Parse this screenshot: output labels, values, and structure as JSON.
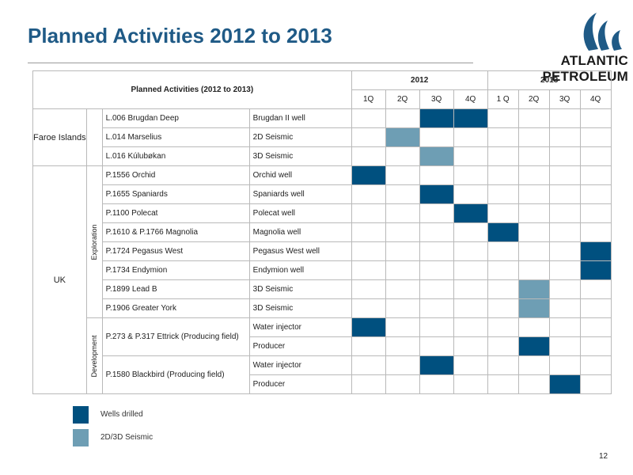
{
  "title": "Planned Activities 2012 to 2013",
  "logo": {
    "text": "ATLANTIC PETROLEUM",
    "icon": "wave-swirl-icon"
  },
  "table": {
    "header": "Planned Activities (2012 to 2013)",
    "years": [
      "2012",
      "2013"
    ],
    "quarters": [
      "1Q",
      "2Q",
      "3Q",
      "4Q",
      "1 Q",
      "2Q",
      "3Q",
      "4Q"
    ],
    "regions": [
      {
        "name": "Faroe Islands",
        "groups": [
          {
            "label": "",
            "rows": [
              {
                "license": "L.006 Brugdan Deep",
                "activity": "Brugdan II well",
                "cells": [
                  "",
                  "",
                  "W",
                  "W",
                  "",
                  "",
                  "",
                  ""
                ]
              },
              {
                "license": "L.014 Marselius",
                "activity": "2D Seismic",
                "cells": [
                  "",
                  "S",
                  "",
                  "",
                  "",
                  "",
                  "",
                  ""
                ]
              },
              {
                "license": "L.016 Kúlubøkan",
                "activity": "3D Seismic",
                "cells": [
                  "",
                  "",
                  "S",
                  "",
                  "",
                  "",
                  "",
                  ""
                ]
              }
            ]
          }
        ]
      },
      {
        "name": "UK",
        "groups": [
          {
            "label": "Exploration",
            "rows": [
              {
                "license": "P.1556 Orchid",
                "activity": "Orchid well",
                "cells": [
                  "W",
                  "",
                  "",
                  "",
                  "",
                  "",
                  "",
                  ""
                ]
              },
              {
                "license": "P.1655 Spaniards",
                "activity": "Spaniards well",
                "cells": [
                  "",
                  "",
                  "W",
                  "",
                  "",
                  "",
                  "",
                  ""
                ]
              },
              {
                "license": "P.1100 Polecat",
                "activity": "Polecat well",
                "cells": [
                  "",
                  "",
                  "",
                  "W",
                  "",
                  "",
                  "",
                  ""
                ]
              },
              {
                "license": "P.1610 & P.1766 Magnolia",
                "activity": "Magnolia well",
                "cells": [
                  "",
                  "",
                  "",
                  "",
                  "W",
                  "",
                  "",
                  ""
                ]
              },
              {
                "license": "P.1724 Pegasus West",
                "activity": "Pegasus West well",
                "cells": [
                  "",
                  "",
                  "",
                  "",
                  "",
                  "",
                  "",
                  "W"
                ]
              },
              {
                "license": "P.1734 Endymion",
                "activity": "Endymion well",
                "cells": [
                  "",
                  "",
                  "",
                  "",
                  "",
                  "",
                  "",
                  "W"
                ]
              },
              {
                "license": "P.1899 Lead B",
                "activity": "3D Seismic",
                "cells": [
                  "",
                  "",
                  "",
                  "",
                  "",
                  "S",
                  "",
                  ""
                ]
              },
              {
                "license": "P.1906 Greater York",
                "activity": "3D Seismic",
                "cells": [
                  "",
                  "",
                  "",
                  "",
                  "",
                  "S",
                  "",
                  ""
                ]
              }
            ]
          },
          {
            "label": "Development",
            "rows": [
              {
                "license": "P.273 & P.317 Ettrick (Producing field)",
                "activity": "Water injector",
                "cells": [
                  "W",
                  "",
                  "",
                  "",
                  "",
                  "",
                  "",
                  ""
                ],
                "licenseSpan": 2
              },
              {
                "license": "",
                "activity": "Producer",
                "cells": [
                  "",
                  "",
                  "",
                  "",
                  "",
                  "W",
                  "",
                  ""
                ]
              },
              {
                "license": "P.1580 Blackbird (Producing field)",
                "activity": "Water injector",
                "cells": [
                  "",
                  "",
                  "W",
                  "",
                  "",
                  "",
                  "",
                  ""
                ],
                "licenseSpan": 2
              },
              {
                "license": "",
                "activity": "Producer",
                "cells": [
                  "",
                  "",
                  "",
                  "",
                  "",
                  "",
                  "W",
                  ""
                ]
              }
            ]
          }
        ]
      }
    ]
  },
  "legend": [
    {
      "label": "Wells drilled",
      "color": "#00507f"
    },
    {
      "label": "2D/3D Seismic",
      "color": "#6e9eb4"
    }
  ],
  "page_number": "12"
}
